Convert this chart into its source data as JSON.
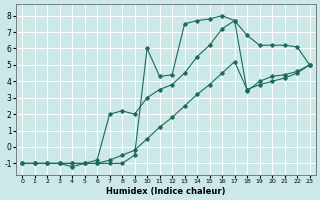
{
  "xlabel": "Humidex (Indice chaleur)",
  "background_color": "#cce8e8",
  "grid_color": "#ffffff",
  "line_color": "#1a6b5a",
  "xlim": [
    -0.5,
    23.5
  ],
  "ylim": [
    -1.7,
    8.7
  ],
  "xticks": [
    0,
    1,
    2,
    3,
    4,
    5,
    6,
    7,
    8,
    9,
    10,
    11,
    12,
    13,
    14,
    15,
    16,
    17,
    18,
    19,
    20,
    21,
    22,
    23
  ],
  "yticks": [
    -1,
    0,
    1,
    2,
    3,
    4,
    5,
    6,
    7,
    8
  ],
  "series1_x": [
    0,
    1,
    2,
    3,
    4,
    5,
    6,
    7,
    8,
    9,
    10,
    11,
    12,
    13,
    14,
    15,
    16,
    17,
    18,
    19,
    20,
    21,
    22,
    23
  ],
  "series1_y": [
    -1,
    -1,
    -1,
    -1,
    -1,
    -1,
    -1,
    -1,
    -1,
    -0.5,
    6.0,
    4.3,
    4.4,
    7.5,
    7.7,
    7.8,
    8.0,
    7.7,
    6.8,
    6.2,
    6.2,
    6.2,
    6.1,
    5.0
  ],
  "series2_x": [
    0,
    1,
    2,
    3,
    4,
    5,
    6,
    7,
    8,
    9,
    10,
    11,
    12,
    13,
    14,
    15,
    16,
    17,
    18,
    19,
    20,
    21,
    22,
    23
  ],
  "series2_y": [
    -1,
    -1,
    -1,
    -1,
    -1,
    -1,
    -1,
    -0.8,
    -0.5,
    -0.2,
    0.5,
    1.2,
    1.8,
    2.5,
    3.2,
    3.8,
    4.5,
    5.2,
    3.5,
    3.8,
    4.0,
    4.2,
    4.5,
    5.0
  ],
  "series3_x": [
    0,
    1,
    2,
    3,
    4,
    5,
    6,
    7,
    8,
    9,
    10,
    11,
    12,
    13,
    14,
    15,
    16,
    17,
    18,
    19,
    20,
    21,
    22,
    23
  ],
  "series3_y": [
    -1,
    -1,
    -1,
    -1,
    -1.2,
    -1,
    -0.8,
    2.0,
    2.2,
    2.0,
    3.0,
    3.5,
    3.8,
    4.5,
    5.5,
    6.2,
    7.2,
    7.7,
    3.4,
    4.0,
    4.3,
    4.4,
    4.6,
    5.0
  ]
}
